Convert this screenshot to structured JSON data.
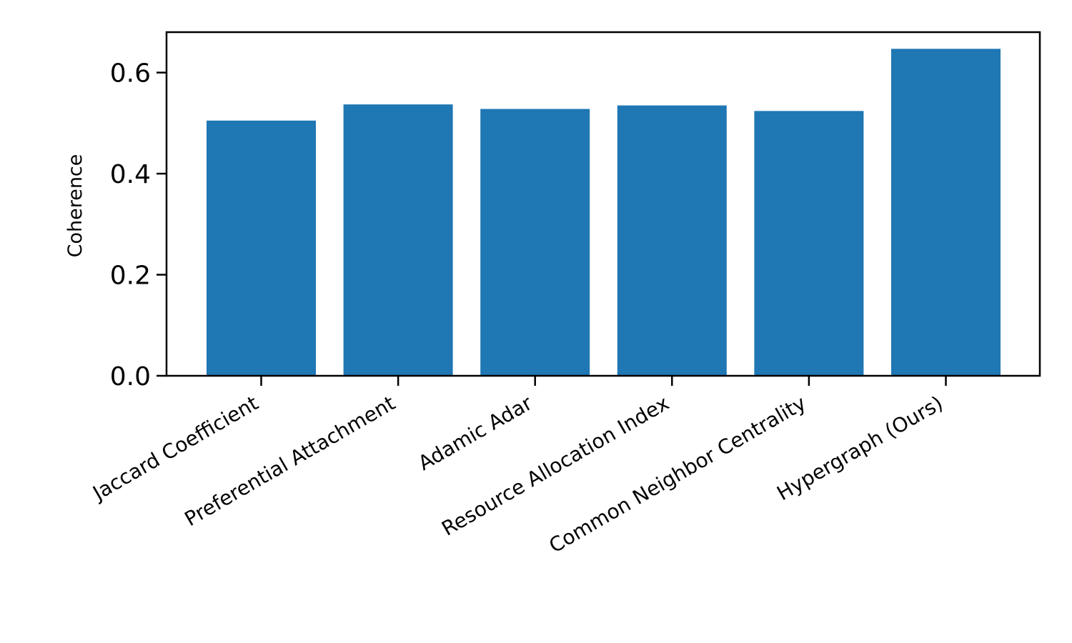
{
  "chart_data": {
    "type": "bar",
    "title": "",
    "xlabel": "",
    "ylabel": "Coherence",
    "categories": [
      "Jaccard Coefficient",
      "Preferential Attachment",
      "Adamic Adar",
      "Resource Allocation Index",
      "Common Neighbor Centrality",
      "Hypergraph (Ours)"
    ],
    "values": [
      0.505,
      0.537,
      0.528,
      0.535,
      0.524,
      0.647
    ],
    "ylim": [
      0,
      0.68
    ],
    "yticks": [
      "0.0",
      "0.2",
      "0.4",
      "0.6"
    ],
    "grid": false,
    "bar_color": "#1f77b4"
  }
}
